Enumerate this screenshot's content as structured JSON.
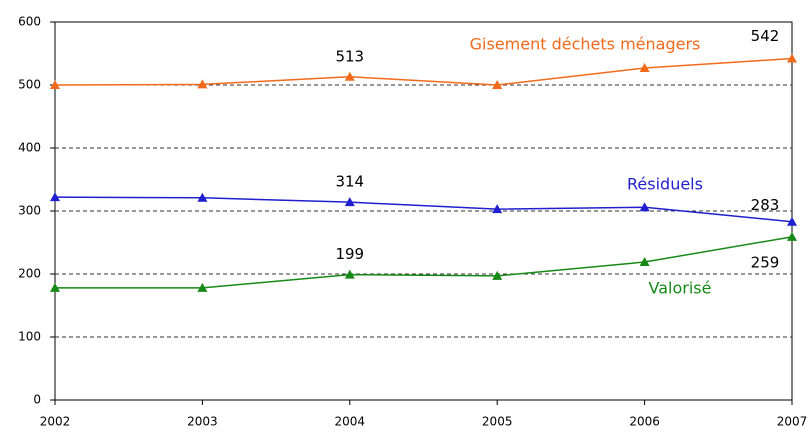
{
  "chart_data": {
    "type": "line",
    "x": [
      2002,
      2003,
      2004,
      2005,
      2006,
      2007
    ],
    "xlim": [
      2002,
      2007
    ],
    "xticks": [
      2002,
      2003,
      2004,
      2005,
      2006,
      2007
    ],
    "ylim": [
      0,
      600
    ],
    "yticks": [
      0,
      100,
      200,
      300,
      400,
      500,
      600
    ],
    "grid": true,
    "series": [
      {
        "name": "Gisement déchets ménagers",
        "color": "#f26a1b",
        "values": [
          500,
          501,
          513,
          500,
          527,
          542
        ],
        "labeled": [
          2,
          5
        ]
      },
      {
        "name": "Résiduels",
        "color": "#1f1fd0",
        "values": [
          322,
          321,
          314,
          303,
          306,
          283
        ],
        "labeled": [
          2,
          5
        ]
      },
      {
        "name": "Valorisé",
        "color": "#168a16",
        "values": [
          178,
          178,
          199,
          197,
          219,
          259
        ],
        "labeled": [
          2,
          5
        ]
      }
    ]
  }
}
